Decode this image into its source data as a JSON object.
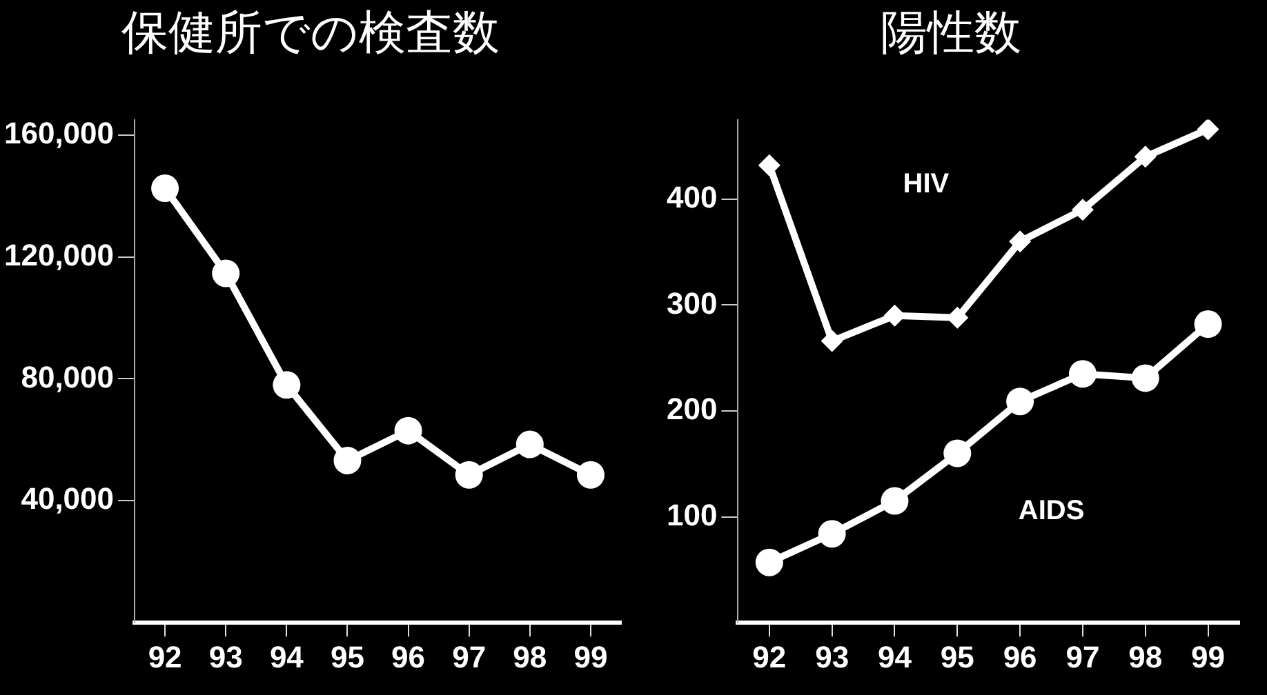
{
  "chart_data": [
    {
      "type": "line",
      "title": "保健所での検査数",
      "categories": [
        "92",
        "93",
        "94",
        "95",
        "96",
        "97",
        "98",
        "99"
      ],
      "series": [
        {
          "color": "#ffffff",
          "values": [
            142500,
            114600,
            78000,
            53200,
            63000,
            48500,
            58500,
            48500
          ]
        }
      ],
      "ylim": [
        0,
        165000
      ],
      "yticks": [
        {
          "value": 40000,
          "label": "40,000"
        },
        {
          "value": 80000,
          "label": "80,000"
        },
        {
          "value": 120000,
          "label": "120,000"
        },
        {
          "value": 160000,
          "label": "160,000"
        }
      ],
      "grid": false,
      "legend": false,
      "marker": "circle",
      "line_style": "solid"
    },
    {
      "type": "line",
      "title": "陽性数",
      "categories": [
        "92",
        "93",
        "94",
        "95",
        "96",
        "97",
        "98",
        "99"
      ],
      "series": [
        {
          "name": "HIV",
          "color": "#ffffff",
          "marker": "diamond",
          "values": [
            432,
            266,
            290,
            288,
            360,
            390,
            440,
            466
          ]
        },
        {
          "name": "AIDS",
          "color": "#ffffff",
          "values": [
            57,
            84,
            115,
            160,
            209,
            235,
            231,
            282
          ]
        }
      ],
      "ylim": [
        0,
        475
      ],
      "yticks": [
        100,
        200,
        300,
        400
      ],
      "grid": false,
      "legend": false,
      "marker": "circle",
      "line_style": "solid"
    }
  ]
}
